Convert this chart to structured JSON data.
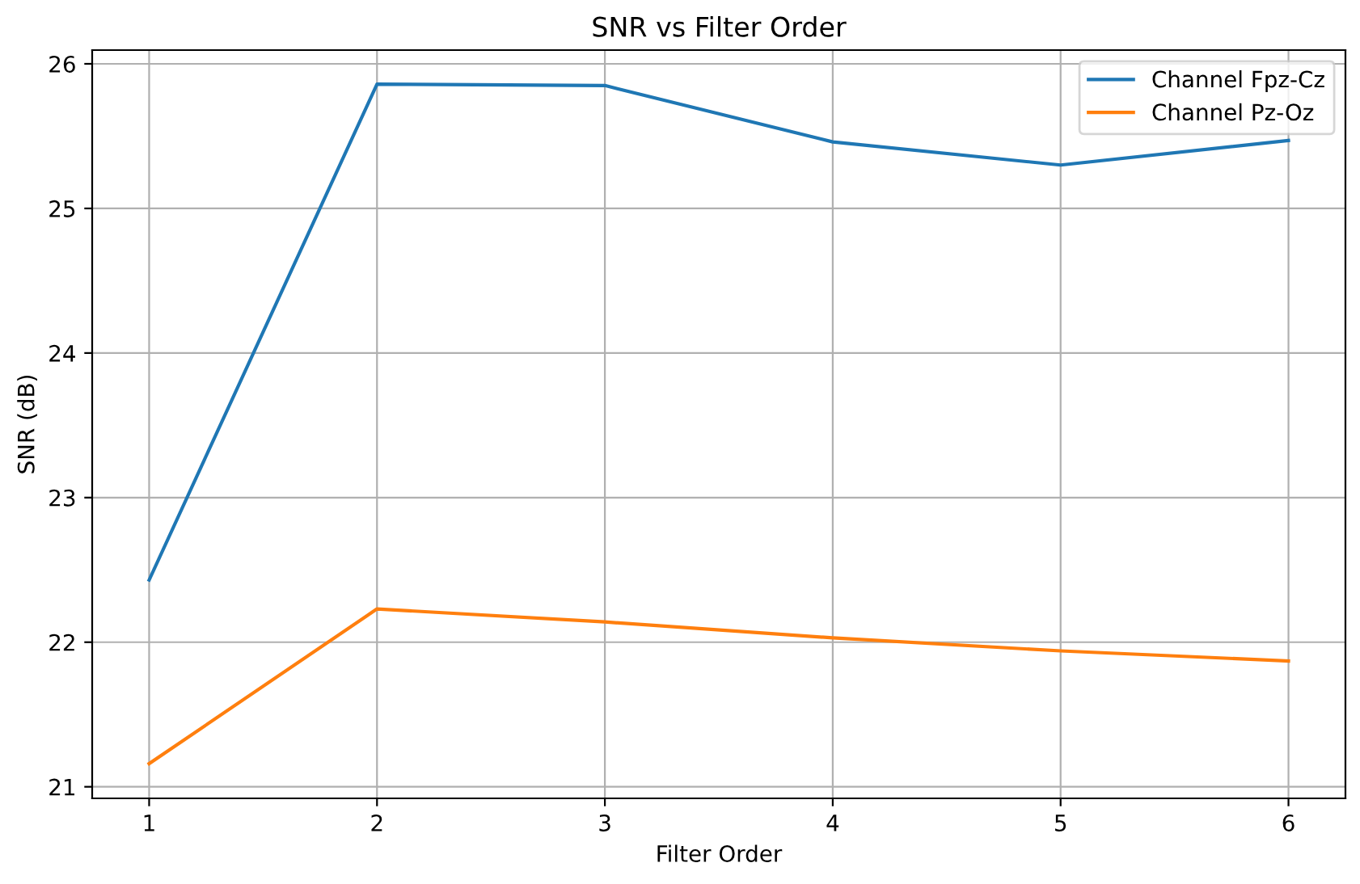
{
  "chart_data": {
    "type": "line",
    "title": "SNR vs Filter Order",
    "xlabel": "Filter Order",
    "ylabel": "SNR (dB)",
    "x": [
      1,
      2,
      3,
      4,
      5,
      6
    ],
    "series": [
      {
        "name": "Channel Fpz-Cz",
        "color": "#1f77b4",
        "values": [
          22.43,
          25.86,
          25.85,
          25.46,
          25.3,
          25.47
        ]
      },
      {
        "name": "Channel Pz-Oz",
        "color": "#ff7f0e",
        "values": [
          21.16,
          22.23,
          22.14,
          22.03,
          21.94,
          21.87
        ]
      }
    ],
    "xlim": [
      0.75,
      6.25
    ],
    "xticks": [
      1,
      2,
      3,
      4,
      5,
      6
    ],
    "ylim": [
      20.92,
      26.095
    ],
    "yticks": [
      21,
      22,
      23,
      24,
      25,
      26
    ],
    "grid": true,
    "legend": "top right",
    "marker": "none",
    "line_style": "solid"
  }
}
